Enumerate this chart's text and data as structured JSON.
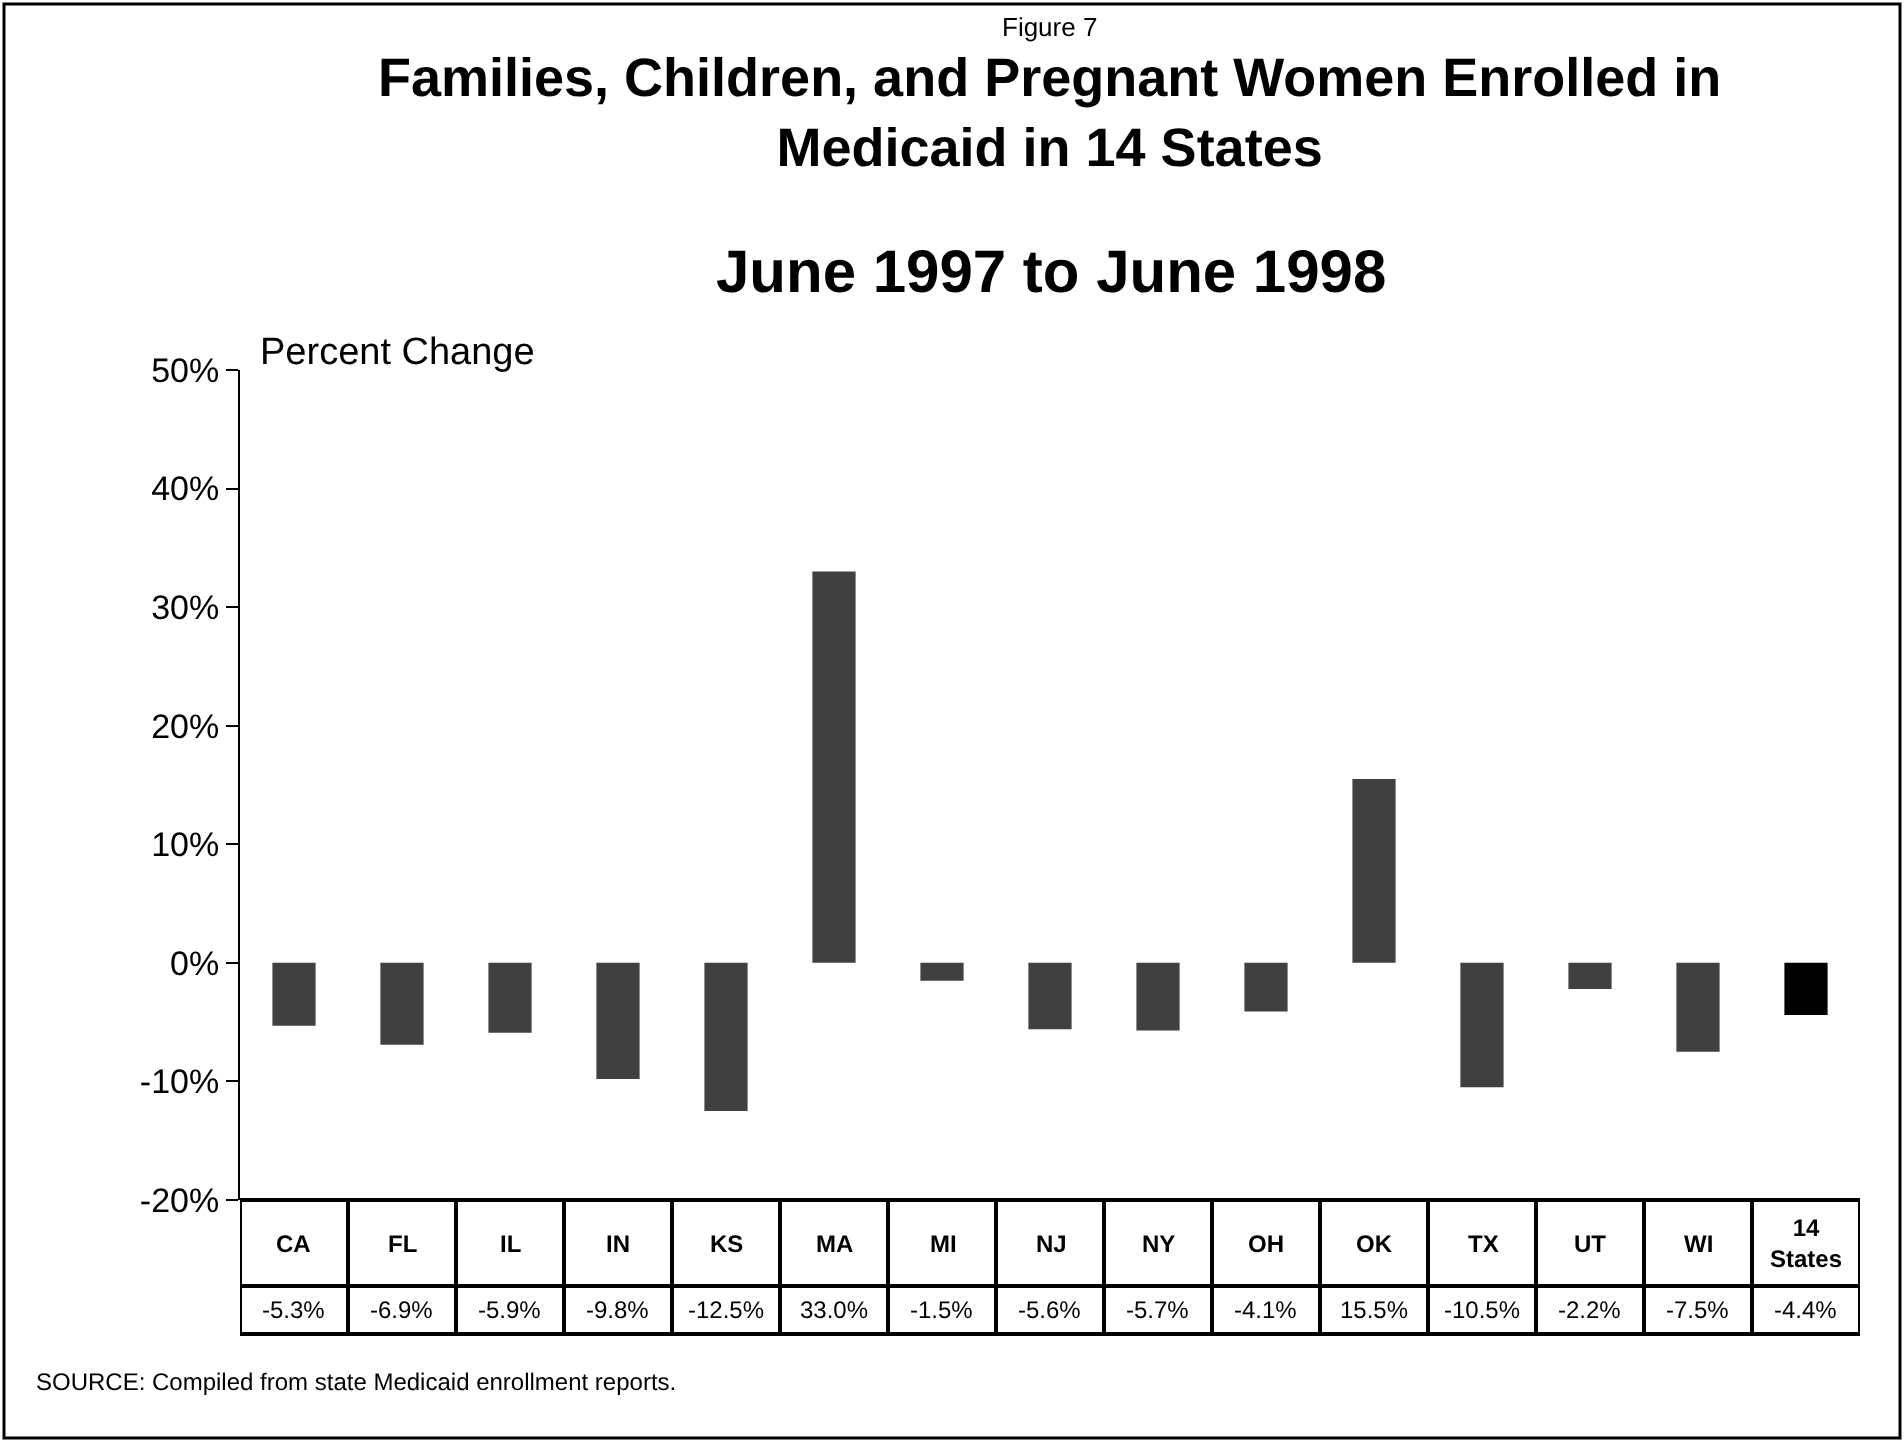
{
  "chart_data": {
    "type": "bar",
    "title": "Families, Children, and Pregnant Women Enrolled in Medicaid in 14 States",
    "subtitle": "June 1997 to June 1998",
    "ylabel": "Percent Change",
    "annotations": [
      "Figure 7",
      "SOURCE: Compiled from state Medicaid enrollment reports."
    ],
    "categories": [
      "CA",
      "FL",
      "IL",
      "IN",
      "KS",
      "MA",
      "MI",
      "NJ",
      "NY",
      "OH",
      "OK",
      "TX",
      "UT",
      "WI",
      "14 States"
    ],
    "values": [
      -5.3,
      -6.9,
      -5.9,
      -9.8,
      -12.5,
      33.0,
      -1.5,
      -5.6,
      -5.7,
      -4.1,
      15.5,
      -10.5,
      -2.2,
      -7.5,
      -4.4
    ],
    "value_labels": [
      "-5.3%",
      "-6.9%",
      "-5.9%",
      "-9.8%",
      "-12.5%",
      "33.0%",
      "-1.5%",
      "-5.6%",
      "-5.7%",
      "-4.1%",
      "15.5%",
      "-10.5%",
      "-2.2%",
      "-7.5%",
      "-4.4%"
    ],
    "colors": [
      "#404040",
      "#404040",
      "#404040",
      "#404040",
      "#404040",
      "#404040",
      "#404040",
      "#404040",
      "#404040",
      "#404040",
      "#404040",
      "#404040",
      "#404040",
      "#404040",
      "#000000"
    ],
    "ylim": [
      -20,
      50
    ],
    "yticks": [
      {
        "value": -20,
        "label": "-20%"
      },
      {
        "value": -10,
        "label": "-10%"
      },
      {
        "value": 0,
        "label": "0%"
      },
      {
        "value": 10,
        "label": "10%"
      },
      {
        "value": 20,
        "label": "20%"
      },
      {
        "value": 30,
        "label": "30%"
      },
      {
        "value": 40,
        "label": "40%"
      },
      {
        "value": 50,
        "label": "50%"
      }
    ],
    "legend": false
  }
}
